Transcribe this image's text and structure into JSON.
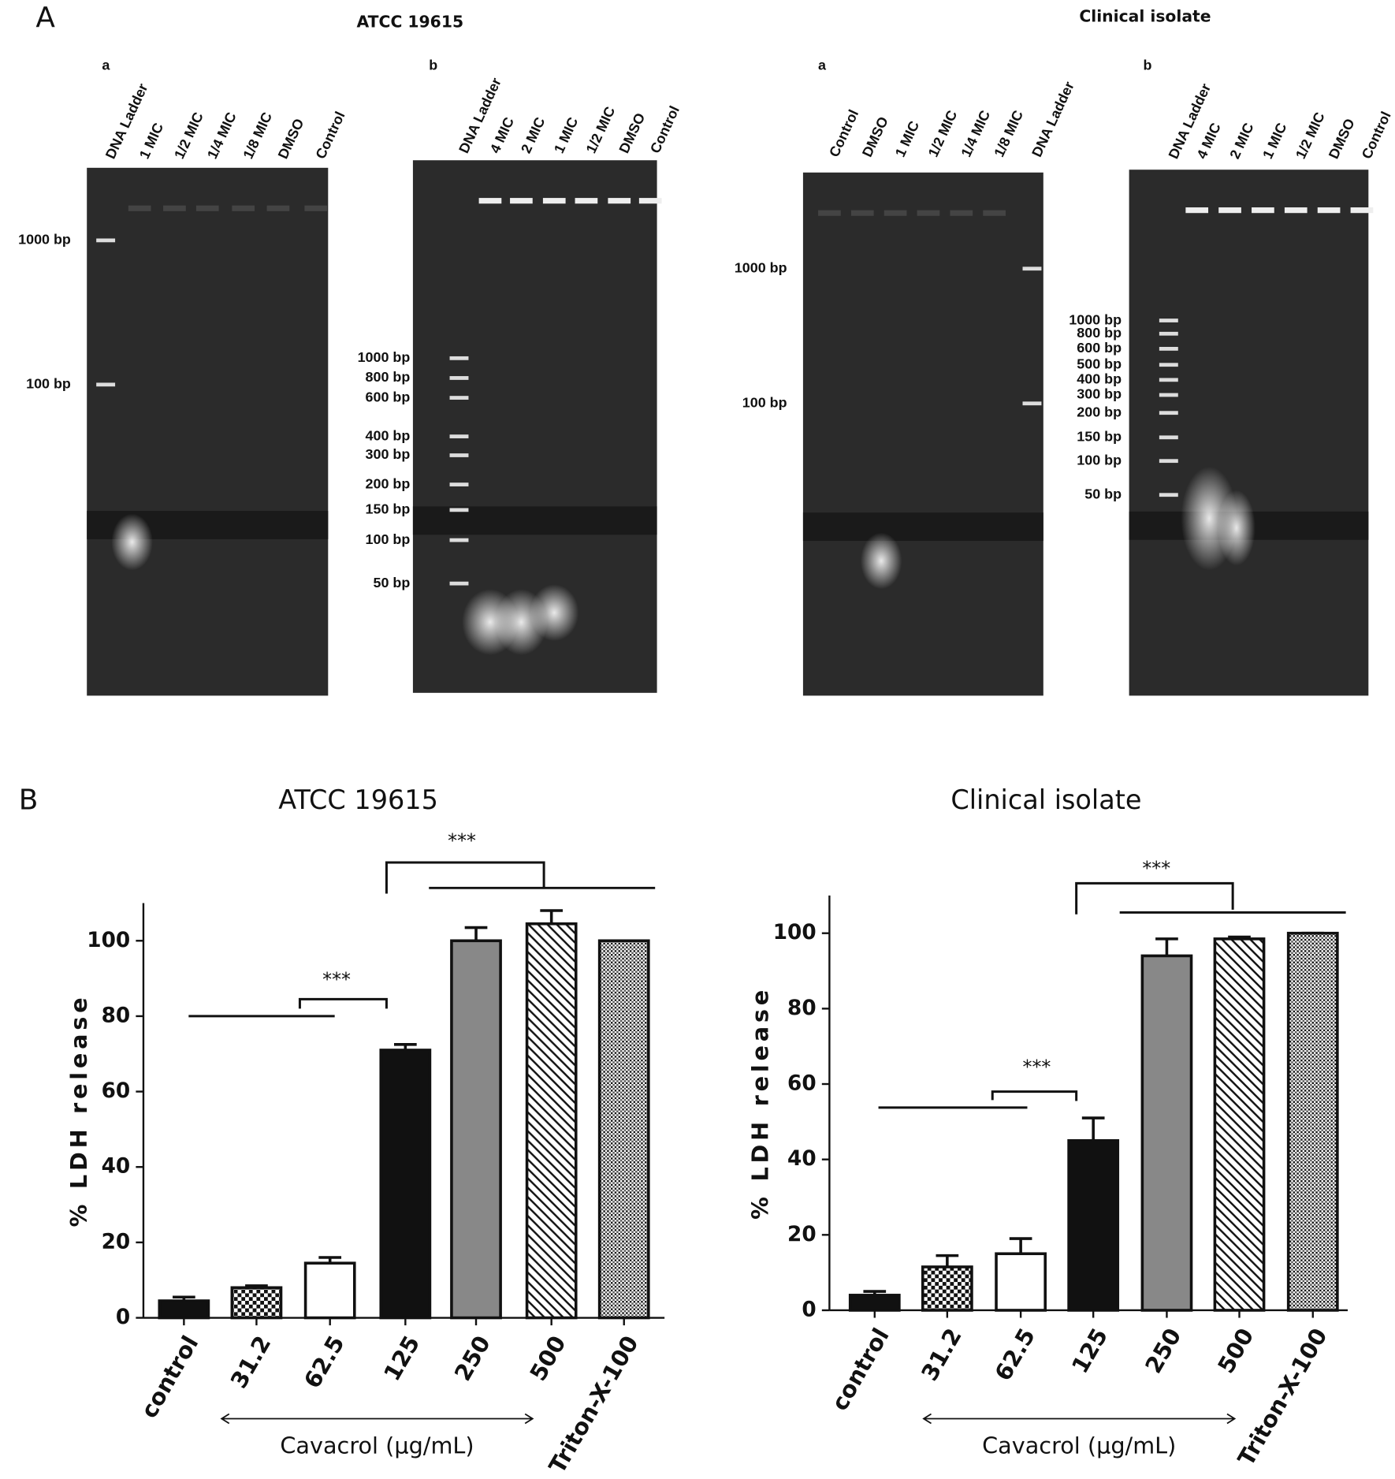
{
  "panel_a": {
    "letter": "A",
    "titles": [
      "ATCC 19615",
      "Clinical isolate"
    ],
    "gels": [
      {
        "sublabel": "a",
        "lanes": [
          "DNA Ladder",
          "1 MIC",
          "1/2 MIC",
          "1/4 MIC",
          "1/8 MIC",
          "DMSO",
          "Control"
        ],
        "markers": [
          "1000 bp",
          "100 bp"
        ]
      },
      {
        "sublabel": "b",
        "lanes": [
          "DNA Ladder",
          "4 MIC",
          "2 MIC",
          "1 MIC",
          "1/2 MIC",
          "DMSO",
          "Control"
        ],
        "markers": [
          "1000 bp",
          "800 bp",
          "600 bp",
          "400 bp",
          "300 bp",
          "200 bp",
          "150 bp",
          "100 bp",
          "50 bp"
        ]
      },
      {
        "sublabel": "a",
        "lanes": [
          "Control",
          "DMSO",
          "1 MIC",
          "1/2 MIC",
          "1/4 MIC",
          "1/8 MIC",
          "DNA Ladder"
        ],
        "markers": [
          "1000 bp",
          "100 bp"
        ]
      },
      {
        "sublabel": "b",
        "lanes": [
          "DNA Ladder",
          "4 MIC",
          "2 MIC",
          "1 MIC",
          "1/2 MIC",
          "DMSO",
          "Control"
        ],
        "markers": [
          "1000 bp",
          "800 bp",
          "600 bp",
          "500 bp",
          "400 bp",
          "300 bp",
          "200 bp",
          "150 bp",
          "100 bp",
          "50 bp"
        ]
      }
    ]
  },
  "panel_b": {
    "letter": "B"
  },
  "chart_data": [
    {
      "type": "bar",
      "title": "ATCC 19615",
      "y_label": "% LDH release",
      "x_label": "Cavacrol (µg/mL)",
      "categories": [
        "control",
        "31.2",
        "62.5",
        "125",
        "250",
        "500",
        "Triton-X-100"
      ],
      "values": [
        4.5,
        8,
        14.5,
        71,
        100,
        104.5,
        100
      ],
      "errors": [
        1,
        0.5,
        1.5,
        1.5,
        3.5,
        3.5,
        0
      ],
      "bar_styles": [
        "solid",
        "checker",
        "white",
        "solid",
        "gray",
        "hatch",
        "dots"
      ],
      "color": "#111111",
      "ylim": [
        0,
        110
      ],
      "yticks": [
        0,
        20,
        40,
        60,
        80,
        100
      ],
      "annotations": [
        "***",
        "***"
      ]
    },
    {
      "type": "bar",
      "title": "Clinical isolate",
      "y_label": "% LDH release",
      "x_label": "Cavacrol (µg/mL)",
      "categories": [
        "control",
        "31.2",
        "62.5",
        "125",
        "250",
        "500",
        "Triton-X-100"
      ],
      "values": [
        4,
        11.5,
        15,
        45,
        94,
        98.5,
        100
      ],
      "errors": [
        1,
        3,
        4,
        6,
        4.5,
        0.5,
        0
      ],
      "bar_styles": [
        "solid",
        "checker",
        "white",
        "solid",
        "gray",
        "hatch",
        "dots"
      ],
      "color": "#111111",
      "ylim": [
        0,
        110
      ],
      "yticks": [
        0,
        20,
        40,
        60,
        80,
        100
      ],
      "annotations": [
        "***",
        "***"
      ]
    }
  ]
}
